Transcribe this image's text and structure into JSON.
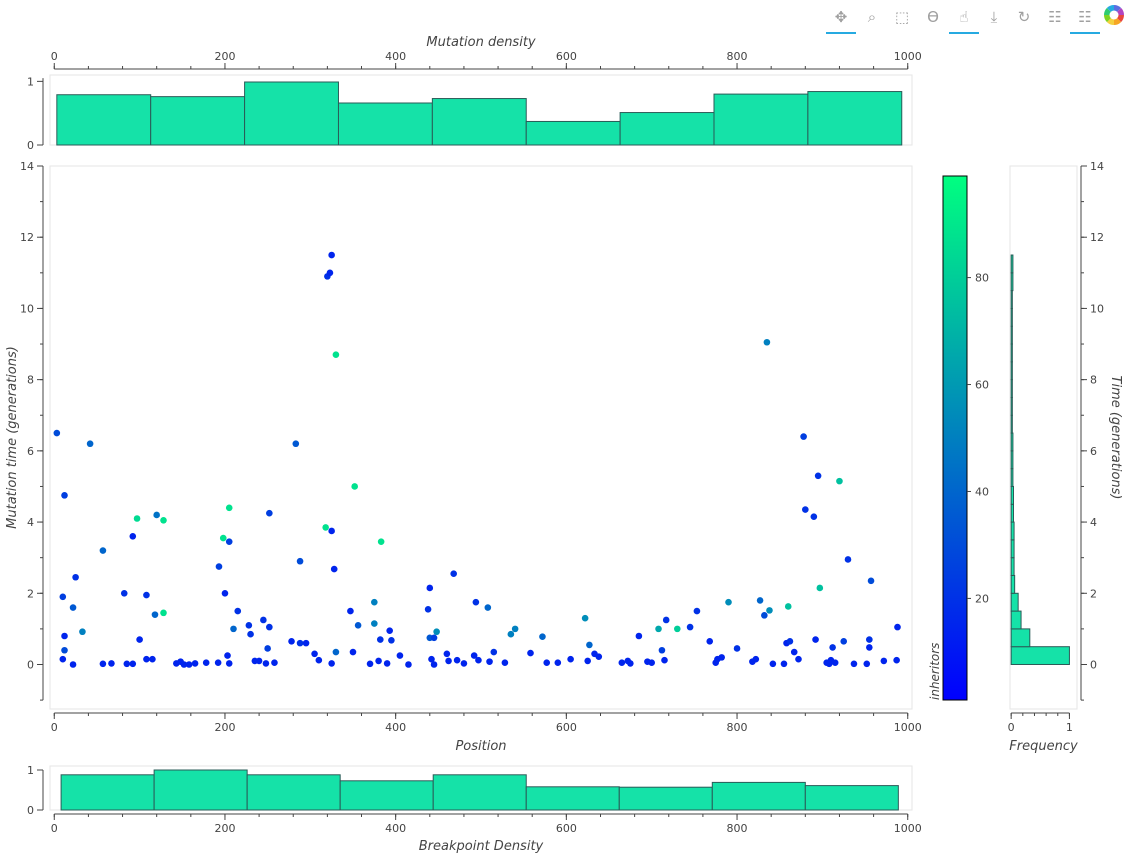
{
  "toolbar": {
    "tools": [
      {
        "name": "pan-tool-icon",
        "glyph": "✥",
        "active": true
      },
      {
        "name": "box-zoom-tool-icon",
        "glyph": "⌕",
        "active": false
      },
      {
        "name": "box-select-tool-icon",
        "glyph": "⬚",
        "active": false
      },
      {
        "name": "lasso-select-tool-icon",
        "glyph": "ϴ",
        "active": false
      },
      {
        "name": "tap-tool-icon",
        "glyph": "☝",
        "active": true
      },
      {
        "name": "save-tool-icon",
        "glyph": "⤓",
        "active": false
      },
      {
        "name": "reset-tool-icon",
        "glyph": "↻",
        "active": false
      },
      {
        "name": "hover-tool-icon",
        "glyph": "☷",
        "active": false
      },
      {
        "name": "hover-tool-2-icon",
        "glyph": "☷",
        "active": true
      }
    ],
    "logo": "bokeh-logo-icon"
  },
  "chart_data": {
    "type": "scatter",
    "top_histogram": {
      "type": "bar",
      "xlabel": "Mutation density",
      "xlim": [
        -5,
        1005
      ],
      "ylim": [
        0,
        1.1
      ],
      "x_ticks": [
        0,
        200,
        400,
        600,
        800,
        1000
      ],
      "y_ticks": [
        0,
        1
      ],
      "bin_edges": [
        3,
        113,
        223,
        333,
        443,
        553,
        663,
        773,
        883,
        993
      ],
      "values": [
        0.79,
        0.76,
        0.99,
        0.66,
        0.73,
        0.37,
        0.51,
        0.8,
        0.84
      ]
    },
    "main_scatter": {
      "xlabel": "Position",
      "ylabel": "Mutation time (generations)",
      "xlim": [
        -5,
        1005
      ],
      "ylim": [
        -1.25,
        14
      ],
      "x_ticks": [
        0,
        200,
        400,
        600,
        800,
        1000
      ],
      "y_ticks": [
        0,
        2,
        4,
        6,
        8,
        10,
        12,
        14
      ],
      "color_field": "inheritors",
      "points": [
        [
          3,
          6.5,
          30
        ],
        [
          10,
          1.9,
          25
        ],
        [
          12,
          4.75,
          25
        ],
        [
          12,
          0.8,
          15
        ],
        [
          12,
          0.4,
          30
        ],
        [
          10,
          0.15,
          15
        ],
        [
          22,
          1.6,
          35
        ],
        [
          25,
          2.45,
          20
        ],
        [
          22,
          0.0,
          15
        ],
        [
          33,
          0.92,
          50
        ],
        [
          42,
          6.2,
          40
        ],
        [
          57,
          0.02,
          15
        ],
        [
          57,
          3.2,
          40
        ],
        [
          67,
          0.03,
          15
        ],
        [
          82,
          2.0,
          20
        ],
        [
          85,
          0.02,
          15
        ],
        [
          92,
          0.02,
          15
        ],
        [
          92,
          3.6,
          15
        ],
        [
          97,
          4.1,
          85
        ],
        [
          100,
          0.7,
          15
        ],
        [
          108,
          1.95,
          20
        ],
        [
          108,
          0.15,
          15
        ],
        [
          115,
          0.15,
          15
        ],
        [
          118,
          1.4,
          40
        ],
        [
          120,
          4.2,
          45
        ],
        [
          128,
          4.05,
          88
        ],
        [
          128,
          1.45,
          88
        ],
        [
          143,
          0.03,
          15
        ],
        [
          148,
          0.08,
          15
        ],
        [
          152,
          0.0,
          15
        ],
        [
          158,
          0.0,
          15
        ],
        [
          165,
          0.03,
          15
        ],
        [
          178,
          0.05,
          15
        ],
        [
          192,
          0.05,
          15
        ],
        [
          193,
          2.75,
          25
        ],
        [
          198,
          3.55,
          88
        ],
        [
          200,
          2.0,
          15
        ],
        [
          205,
          4.4,
          88
        ],
        [
          203,
          0.25,
          15
        ],
        [
          205,
          3.45,
          25
        ],
        [
          205,
          0.03,
          15
        ],
        [
          210,
          1.0,
          40
        ],
        [
          215,
          1.5,
          20
        ],
        [
          228,
          1.1,
          20
        ],
        [
          230,
          0.85,
          20
        ],
        [
          235,
          0.1,
          15
        ],
        [
          240,
          0.1,
          15
        ],
        [
          245,
          1.25,
          20
        ],
        [
          250,
          0.45,
          25
        ],
        [
          248,
          0.03,
          15
        ],
        [
          252,
          1.05,
          20
        ],
        [
          252,
          4.25,
          25
        ],
        [
          258,
          0.05,
          15
        ],
        [
          278,
          0.65,
          15
        ],
        [
          283,
          6.2,
          35
        ],
        [
          288,
          0.6,
          20
        ],
        [
          288,
          2.9,
          30
        ],
        [
          295,
          0.6,
          15
        ],
        [
          305,
          0.3,
          15
        ],
        [
          310,
          0.12,
          15
        ],
        [
          318,
          3.85,
          88
        ],
        [
          320,
          10.9,
          20
        ],
        [
          323,
          11.0,
          15
        ],
        [
          325,
          11.5,
          15
        ],
        [
          325,
          3.75,
          15
        ],
        [
          325,
          0.03,
          15
        ],
        [
          328,
          2.68,
          15
        ],
        [
          330,
          8.7,
          88
        ],
        [
          330,
          0.35,
          40
        ],
        [
          347,
          1.5,
          15
        ],
        [
          350,
          0.35,
          15
        ],
        [
          352,
          5.0,
          88
        ],
        [
          356,
          1.1,
          35
        ],
        [
          370,
          0.02,
          15
        ],
        [
          375,
          1.75,
          50
        ],
        [
          375,
          1.15,
          50
        ],
        [
          380,
          0.1,
          15
        ],
        [
          382,
          0.7,
          20
        ],
        [
          383,
          3.45,
          88
        ],
        [
          390,
          0.03,
          15
        ],
        [
          393,
          0.95,
          15
        ],
        [
          395,
          0.68,
          20
        ],
        [
          405,
          0.25,
          15
        ],
        [
          415,
          0.0,
          15
        ],
        [
          438,
          1.55,
          20
        ],
        [
          440,
          2.15,
          15
        ],
        [
          440,
          0.75,
          35
        ],
        [
          442,
          0.15,
          15
        ],
        [
          445,
          0.0,
          15
        ],
        [
          448,
          0.92,
          55
        ],
        [
          445,
          0.75,
          25
        ],
        [
          460,
          0.3,
          15
        ],
        [
          462,
          0.1,
          15
        ],
        [
          468,
          2.55,
          20
        ],
        [
          472,
          0.12,
          15
        ],
        [
          480,
          0.03,
          15
        ],
        [
          492,
          0.25,
          15
        ],
        [
          494,
          1.75,
          20
        ],
        [
          497,
          0.12,
          15
        ],
        [
          508,
          1.6,
          40
        ],
        [
          510,
          0.08,
          15
        ],
        [
          515,
          0.35,
          20
        ],
        [
          528,
          0.05,
          15
        ],
        [
          535,
          0.85,
          50
        ],
        [
          540,
          1.0,
          50
        ],
        [
          558,
          0.32,
          15
        ],
        [
          572,
          0.78,
          40
        ],
        [
          577,
          0.05,
          15
        ],
        [
          590,
          0.05,
          15
        ],
        [
          605,
          0.15,
          15
        ],
        [
          622,
          1.3,
          55
        ],
        [
          625,
          0.1,
          15
        ],
        [
          627,
          0.55,
          40
        ],
        [
          633,
          0.3,
          15
        ],
        [
          638,
          0.22,
          15
        ],
        [
          665,
          0.05,
          15
        ],
        [
          672,
          0.1,
          15
        ],
        [
          675,
          0.03,
          15
        ],
        [
          685,
          0.8,
          15
        ],
        [
          695,
          0.08,
          15
        ],
        [
          700,
          0.05,
          15
        ],
        [
          708,
          1.0,
          65
        ],
        [
          712,
          0.4,
          25
        ],
        [
          715,
          0.12,
          15
        ],
        [
          717,
          1.25,
          20
        ],
        [
          730,
          1.0,
          80
        ],
        [
          745,
          1.05,
          20
        ],
        [
          753,
          1.5,
          20
        ],
        [
          768,
          0.65,
          15
        ],
        [
          775,
          0.05,
          15
        ],
        [
          777,
          0.15,
          15
        ],
        [
          782,
          0.2,
          15
        ],
        [
          790,
          1.75,
          55
        ],
        [
          800,
          0.45,
          20
        ],
        [
          818,
          0.08,
          15
        ],
        [
          822,
          0.15,
          15
        ],
        [
          827,
          1.8,
          40
        ],
        [
          832,
          1.38,
          30
        ],
        [
          835,
          9.05,
          50
        ],
        [
          838,
          1.52,
          55
        ],
        [
          842,
          0.02,
          15
        ],
        [
          855,
          0.02,
          15
        ],
        [
          858,
          0.6,
          15
        ],
        [
          860,
          1.63,
          75
        ],
        [
          862,
          0.65,
          20
        ],
        [
          867,
          0.35,
          15
        ],
        [
          872,
          0.15,
          15
        ],
        [
          878,
          6.4,
          25
        ],
        [
          880,
          4.35,
          20
        ],
        [
          890,
          4.15,
          20
        ],
        [
          892,
          0.7,
          15
        ],
        [
          895,
          5.3,
          20
        ],
        [
          897,
          2.15,
          75
        ],
        [
          905,
          0.05,
          15
        ],
        [
          908,
          0.02,
          15
        ],
        [
          910,
          0.12,
          15
        ],
        [
          912,
          0.48,
          20
        ],
        [
          915,
          0.05,
          15
        ],
        [
          920,
          5.15,
          75
        ],
        [
          925,
          0.65,
          25
        ],
        [
          930,
          2.95,
          20
        ],
        [
          937,
          0.02,
          15
        ],
        [
          952,
          0.02,
          15
        ],
        [
          955,
          0.48,
          15
        ],
        [
          955,
          0.7,
          20
        ],
        [
          957,
          2.35,
          30
        ],
        [
          972,
          0.1,
          15
        ],
        [
          987,
          0.12,
          15
        ],
        [
          988,
          1.05,
          15
        ]
      ]
    },
    "colorbar": {
      "label": "inheritors",
      "range": [
        1,
        99
      ],
      "ticks": [
        20,
        40,
        60,
        80
      ],
      "palette": [
        "#0000ff",
        "#00ff80"
      ]
    },
    "right_histogram": {
      "type": "bar",
      "orientation": "horizontal",
      "xlabel": "Frequency",
      "ylabel": "Time (generations)",
      "xlim": [
        -0.02,
        1.13
      ],
      "ylim": [
        -1.25,
        14
      ],
      "x_ticks": [
        0,
        1
      ],
      "y_ticks": [
        0,
        2,
        4,
        6,
        8,
        10,
        12,
        14
      ],
      "bin_edges": [
        0.0,
        0.5,
        1.0,
        1.5,
        2.0,
        2.5,
        3.0,
        3.5,
        4.0,
        4.5,
        5.0,
        5.5,
        6.0,
        6.5,
        7.0,
        7.5,
        8.0,
        8.5,
        9.0,
        9.5,
        10.0,
        10.5,
        11.0,
        11.5
      ],
      "values": [
        1.0,
        0.32,
        0.17,
        0.12,
        0.06,
        0.05,
        0.05,
        0.05,
        0.04,
        0.04,
        0.03,
        0.03,
        0.03,
        0.02,
        0.02,
        0.02,
        0.02,
        0.02,
        0.02,
        0.02,
        0.02,
        0.03,
        0.03
      ]
    },
    "bottom_histogram": {
      "type": "bar",
      "xlabel": "Breakpoint Density",
      "xlim": [
        -5,
        1005
      ],
      "ylim": [
        0,
        1.0
      ],
      "x_ticks": [
        0,
        200,
        400,
        600,
        800,
        1000
      ],
      "y_ticks": [
        0,
        1
      ],
      "bin_edges": [
        8,
        117,
        226,
        335,
        444,
        553,
        662,
        771,
        880,
        989
      ],
      "values": [
        0.88,
        1.0,
        0.88,
        0.73,
        0.88,
        0.58,
        0.57,
        0.69,
        0.61
      ]
    }
  }
}
